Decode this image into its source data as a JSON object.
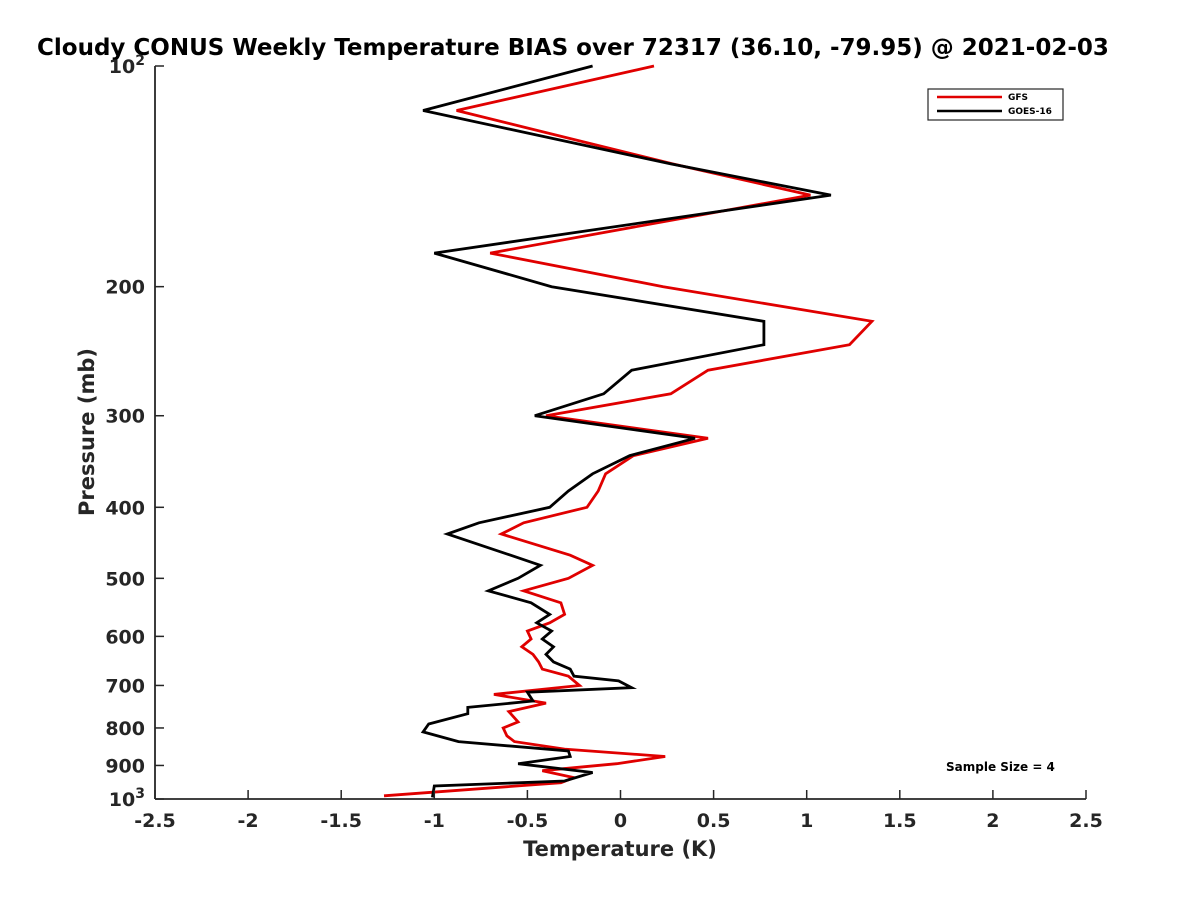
{
  "chart_data": {
    "type": "line",
    "title": "Cloudy CONUS Weekly Temperature BIAS over 72317 (36.10, -79.95) @ 2021-02-03",
    "xlabel": "Temperature (K)",
    "ylabel": "Pressure (mb)",
    "xlim": [
      -2.5,
      2.5
    ],
    "ylim": [
      100,
      1000
    ],
    "y_scale": "log",
    "y_reversed": true,
    "grid": false,
    "legend_position": "top-right",
    "x_ticks": [
      "-2.5",
      "-2",
      "-1.5",
      "-1",
      "-0.5",
      "0",
      "0.5",
      "1",
      "1.5",
      "2",
      "2.5"
    ],
    "y_ticks": [
      {
        "value": 100,
        "base": "10",
        "exp": "2"
      },
      {
        "value": 200,
        "label": "200"
      },
      {
        "value": 300,
        "label": "300"
      },
      {
        "value": 400,
        "label": "400"
      },
      {
        "value": 500,
        "label": "500"
      },
      {
        "value": 600,
        "label": "600"
      },
      {
        "value": 700,
        "label": "700"
      },
      {
        "value": 800,
        "label": "800"
      },
      {
        "value": 900,
        "label": "900"
      },
      {
        "value": 1000,
        "base": "10",
        "exp": "3"
      }
    ],
    "annotation": "Sample Size = 4",
    "series": [
      {
        "name": "GFS",
        "color": "#e00000",
        "points": [
          [
            0.18,
            100
          ],
          [
            -0.88,
            115
          ],
          [
            0.28,
            136
          ],
          [
            1.02,
            150
          ],
          [
            -0.7,
            180
          ],
          [
            0.23,
            200
          ],
          [
            1.35,
            223
          ],
          [
            1.23,
            240
          ],
          [
            0.47,
            260
          ],
          [
            0.27,
            280
          ],
          [
            -0.4,
            300
          ],
          [
            0.47,
            322
          ],
          [
            0.07,
            340
          ],
          [
            -0.08,
            360
          ],
          [
            -0.12,
            380
          ],
          [
            -0.18,
            400
          ],
          [
            -0.52,
            420
          ],
          [
            -0.64,
            435
          ],
          [
            -0.27,
            465
          ],
          [
            -0.15,
            480
          ],
          [
            -0.28,
            500
          ],
          [
            -0.52,
            520
          ],
          [
            -0.32,
            540
          ],
          [
            -0.3,
            560
          ],
          [
            -0.38,
            575
          ],
          [
            -0.5,
            590
          ],
          [
            -0.48,
            605
          ],
          [
            -0.53,
            620
          ],
          [
            -0.47,
            635
          ],
          [
            -0.44,
            650
          ],
          [
            -0.42,
            665
          ],
          [
            -0.28,
            680
          ],
          [
            -0.22,
            700
          ],
          [
            -0.68,
            720
          ],
          [
            -0.4,
            740
          ],
          [
            -0.6,
            760
          ],
          [
            -0.55,
            785
          ],
          [
            -0.63,
            800
          ],
          [
            -0.61,
            820
          ],
          [
            -0.57,
            835
          ],
          [
            -0.3,
            855
          ],
          [
            0.24,
            875
          ],
          [
            -0.02,
            895
          ],
          [
            -0.42,
            915
          ],
          [
            -0.25,
            935
          ],
          [
            -0.32,
            950
          ],
          [
            -1.27,
            990
          ]
        ]
      },
      {
        "name": "GOES-16",
        "color": "#000000",
        "points": [
          [
            -0.15,
            100
          ],
          [
            -1.06,
            115
          ],
          [
            0.27,
            136
          ],
          [
            1.13,
            150
          ],
          [
            -1.0,
            180
          ],
          [
            -0.37,
            200
          ],
          [
            0.77,
            223
          ],
          [
            0.77,
            240
          ],
          [
            0.06,
            260
          ],
          [
            -0.09,
            280
          ],
          [
            -0.46,
            300
          ],
          [
            0.4,
            322
          ],
          [
            0.05,
            340
          ],
          [
            -0.15,
            360
          ],
          [
            -0.28,
            380
          ],
          [
            -0.38,
            400
          ],
          [
            -0.76,
            420
          ],
          [
            -0.93,
            435
          ],
          [
            -0.59,
            465
          ],
          [
            -0.43,
            480
          ],
          [
            -0.55,
            500
          ],
          [
            -0.71,
            520
          ],
          [
            -0.48,
            540
          ],
          [
            -0.38,
            560
          ],
          [
            -0.45,
            575
          ],
          [
            -0.37,
            590
          ],
          [
            -0.42,
            605
          ],
          [
            -0.36,
            620
          ],
          [
            -0.4,
            635
          ],
          [
            -0.36,
            650
          ],
          [
            -0.27,
            665
          ],
          [
            -0.25,
            680
          ],
          [
            -0.01,
            690
          ],
          [
            0.06,
            705
          ],
          [
            -0.5,
            715
          ],
          [
            -0.47,
            735
          ],
          [
            -0.82,
            750
          ],
          [
            -0.82,
            765
          ],
          [
            -1.03,
            790
          ],
          [
            -1.06,
            810
          ],
          [
            -0.87,
            835
          ],
          [
            -0.28,
            860
          ],
          [
            -0.27,
            875
          ],
          [
            -0.55,
            895
          ],
          [
            -0.15,
            920
          ],
          [
            -0.3,
            945
          ],
          [
            -1.0,
            960
          ],
          [
            -1.01,
            995
          ]
        ]
      }
    ]
  }
}
